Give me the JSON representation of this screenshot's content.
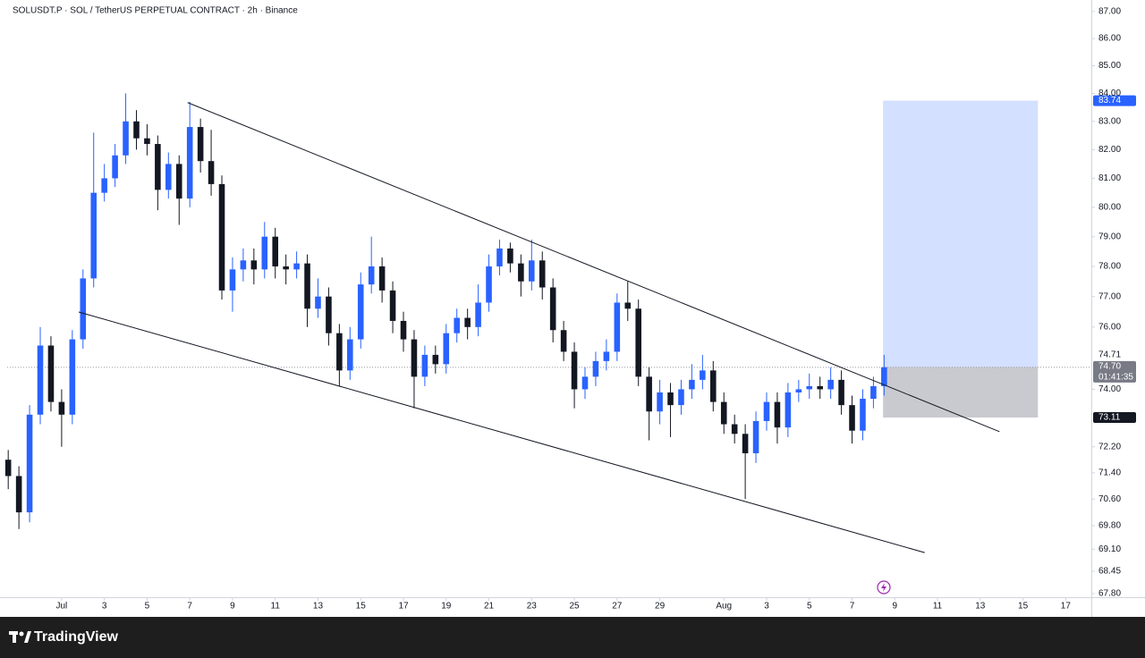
{
  "chart_data": {
    "type": "candlestick",
    "title": "SOLUSDT.P · SOL / TetherUS PERPETUAL CONTRACT · 2h · Binance",
    "brand": "TradingView",
    "log_scale": true,
    "grid": false,
    "up_color": "#2962ff",
    "down_color": "#131722",
    "xlim": [
      -2.55,
      48.2
    ],
    "ylim": [
      67.59,
      87.43
    ],
    "xticks": [
      {
        "value": 0,
        "label": "Jul"
      },
      {
        "value": 2,
        "label": "3"
      },
      {
        "value": 4,
        "label": "5"
      },
      {
        "value": 6,
        "label": "7"
      },
      {
        "value": 8,
        "label": "9"
      },
      {
        "value": 10,
        "label": "11"
      },
      {
        "value": 12,
        "label": "13"
      },
      {
        "value": 14,
        "label": "15"
      },
      {
        "value": 16,
        "label": "17"
      },
      {
        "value": 18,
        "label": "19"
      },
      {
        "value": 20,
        "label": "21"
      },
      {
        "value": 22,
        "label": "23"
      },
      {
        "value": 24,
        "label": "25"
      },
      {
        "value": 26,
        "label": "27"
      },
      {
        "value": 28,
        "label": "29"
      },
      {
        "value": 31,
        "label": "Aug"
      },
      {
        "value": 33,
        "label": "3"
      },
      {
        "value": 35,
        "label": "5"
      },
      {
        "value": 37,
        "label": "7"
      },
      {
        "value": 39,
        "label": "9"
      },
      {
        "value": 41,
        "label": "11"
      },
      {
        "value": 43,
        "label": "13"
      },
      {
        "value": 45,
        "label": "15"
      },
      {
        "value": 47,
        "label": "17"
      }
    ],
    "yticks": [
      {
        "value": 87,
        "label": "87.00"
      },
      {
        "value": 86,
        "label": "86.00"
      },
      {
        "value": 85,
        "label": "85.00"
      },
      {
        "value": 84,
        "label": "84.00"
      },
      {
        "value": 83,
        "label": "83.00"
      },
      {
        "value": 82,
        "label": "82.00"
      },
      {
        "value": 81,
        "label": "81.00"
      },
      {
        "value": 80,
        "label": "80.00"
      },
      {
        "value": 79,
        "label": "79.00"
      },
      {
        "value": 78,
        "label": "78.00"
      },
      {
        "value": 77,
        "label": "77.00"
      },
      {
        "value": 76,
        "label": "76.00"
      },
      {
        "value": 74,
        "label": "74.00"
      },
      {
        "value": 72.2,
        "label": "72.20"
      },
      {
        "value": 71.4,
        "label": "71.40"
      },
      {
        "value": 70.6,
        "label": "70.60"
      },
      {
        "value": 69.8,
        "label": "69.80"
      },
      {
        "value": 69.1,
        "label": "69.10"
      },
      {
        "value": 68.45,
        "label": "68.45"
      },
      {
        "value": 67.8,
        "label": "67.80"
      }
    ],
    "x": [
      -2.5,
      -2,
      -1.5,
      -1,
      -0.5,
      0,
      0.5,
      1,
      1.5,
      2,
      2.5,
      3,
      3.5,
      4,
      4.5,
      5,
      5.5,
      6,
      6.5,
      7,
      7.5,
      8,
      8.5,
      9,
      9.5,
      10,
      10.5,
      11,
      11.5,
      12,
      12.5,
      13,
      13.5,
      14,
      14.5,
      15,
      15.5,
      16,
      16.5,
      17,
      17.5,
      18,
      18.5,
      19,
      19.5,
      20,
      20.5,
      21,
      21.5,
      22,
      22.5,
      23,
      23.5,
      24,
      24.5,
      25,
      25.5,
      26,
      26.5,
      27,
      27.5,
      28,
      28.5,
      29,
      29.5,
      30,
      30.5,
      31,
      31.5,
      32,
      32.5,
      33,
      33.5,
      34,
      34.5,
      35,
      35.5,
      36,
      36.5,
      37,
      37.5,
      38,
      38.5
    ],
    "open": [
      71.8,
      71.3,
      70.2,
      73.2,
      75.4,
      73.6,
      73.2,
      75.6,
      77.6,
      80.5,
      81.0,
      81.8,
      83.0,
      82.4,
      82.2,
      80.6,
      81.5,
      80.3,
      82.8,
      81.6,
      80.8,
      77.2,
      77.9,
      78.2,
      77.9,
      79.0,
      78.0,
      77.9,
      78.1,
      76.6,
      77.0,
      75.8,
      74.6,
      75.6,
      77.4,
      78.0,
      77.2,
      76.2,
      75.6,
      74.4,
      75.1,
      74.8,
      75.8,
      76.3,
      76.0,
      76.8,
      78.0,
      78.6,
      78.1,
      77.5,
      78.2,
      77.3,
      75.9,
      75.2,
      74.0,
      74.4,
      74.9,
      75.2,
      76.8,
      76.6,
      74.4,
      73.3,
      73.9,
      73.5,
      74.0,
      74.3,
      74.6,
      73.6,
      72.9,
      72.6,
      72.0,
      73.0,
      73.6,
      72.8,
      73.9,
      74.0,
      74.1,
      74.0,
      74.3,
      73.5,
      72.7,
      73.7,
      74.1
    ],
    "high": [
      72.1,
      71.6,
      73.5,
      76.0,
      75.7,
      74.0,
      75.9,
      77.9,
      82.6,
      81.5,
      82.2,
      84.0,
      83.4,
      82.9,
      82.5,
      81.9,
      81.8,
      83.7,
      83.1,
      82.7,
      81.1,
      78.3,
      78.6,
      78.6,
      79.5,
      79.3,
      78.4,
      78.5,
      78.4,
      77.6,
      77.3,
      76.1,
      76.0,
      77.8,
      79.0,
      78.3,
      77.5,
      76.5,
      75.9,
      75.4,
      75.4,
      76.1,
      76.6,
      76.6,
      77.4,
      78.4,
      78.9,
      78.8,
      78.4,
      78.9,
      78.5,
      77.6,
      76.2,
      75.5,
      74.7,
      75.2,
      75.6,
      77.1,
      77.5,
      76.9,
      74.7,
      74.3,
      74.2,
      74.3,
      74.8,
      75.1,
      74.9,
      73.9,
      73.2,
      72.9,
      73.3,
      73.9,
      73.9,
      74.2,
      74.3,
      74.5,
      74.4,
      74.7,
      74.6,
      73.8,
      74.0,
      74.4,
      75.1
    ],
    "low": [
      70.9,
      69.7,
      69.9,
      72.9,
      73.3,
      72.2,
      72.9,
      75.3,
      77.3,
      80.2,
      80.7,
      81.5,
      82.0,
      81.8,
      79.9,
      80.3,
      79.4,
      80.0,
      81.2,
      80.4,
      76.9,
      76.5,
      77.5,
      77.4,
      77.6,
      77.6,
      77.4,
      77.6,
      76.0,
      76.3,
      75.4,
      74.1,
      74.3,
      75.3,
      77.1,
      76.8,
      75.8,
      75.2,
      73.4,
      74.1,
      74.5,
      74.5,
      75.5,
      75.6,
      75.7,
      76.5,
      77.7,
      77.8,
      77.0,
      77.2,
      76.9,
      75.5,
      74.9,
      73.4,
      73.7,
      74.1,
      74.6,
      74.9,
      76.2,
      74.1,
      72.4,
      72.9,
      72.5,
      73.2,
      73.7,
      74.0,
      73.3,
      72.6,
      72.3,
      70.6,
      71.7,
      72.7,
      72.3,
      72.5,
      73.6,
      73.7,
      73.7,
      73.7,
      73.2,
      72.3,
      72.4,
      73.4,
      73.8
    ],
    "close": [
      71.3,
      70.2,
      73.2,
      75.4,
      73.6,
      73.2,
      75.6,
      77.6,
      80.5,
      81.0,
      81.8,
      83.0,
      82.4,
      82.2,
      80.6,
      81.5,
      80.3,
      82.8,
      81.6,
      80.8,
      77.2,
      77.9,
      78.2,
      77.9,
      79.0,
      78.0,
      77.9,
      78.1,
      76.6,
      77.0,
      75.8,
      74.6,
      75.6,
      77.4,
      78.0,
      77.2,
      76.2,
      75.6,
      74.4,
      75.1,
      74.8,
      75.8,
      76.3,
      76.0,
      76.8,
      78.0,
      78.6,
      78.1,
      77.5,
      78.2,
      77.3,
      75.9,
      75.2,
      74.0,
      74.4,
      74.9,
      75.2,
      76.8,
      76.6,
      74.4,
      73.3,
      73.9,
      73.5,
      74.0,
      74.3,
      74.6,
      73.6,
      72.9,
      72.6,
      72.0,
      73.0,
      73.6,
      72.8,
      73.9,
      74.0,
      74.1,
      74.0,
      74.3,
      73.5,
      72.7,
      73.7,
      74.1,
      74.7
    ],
    "trendlines": [
      {
        "x": [
          5.9,
          43.9
        ],
        "y": [
          83.67,
          72.67
        ]
      },
      {
        "x": [
          0.8,
          40.4
        ],
        "y": [
          76.49,
          69.0
        ]
      }
    ],
    "position": {
      "x": [
        38.45,
        45.7
      ],
      "entry": 74.71,
      "target": 83.74,
      "stop": 73.11
    },
    "last_price": {
      "value": 74.7,
      "label": "74.70"
    },
    "countdown": "01:41:35"
  }
}
